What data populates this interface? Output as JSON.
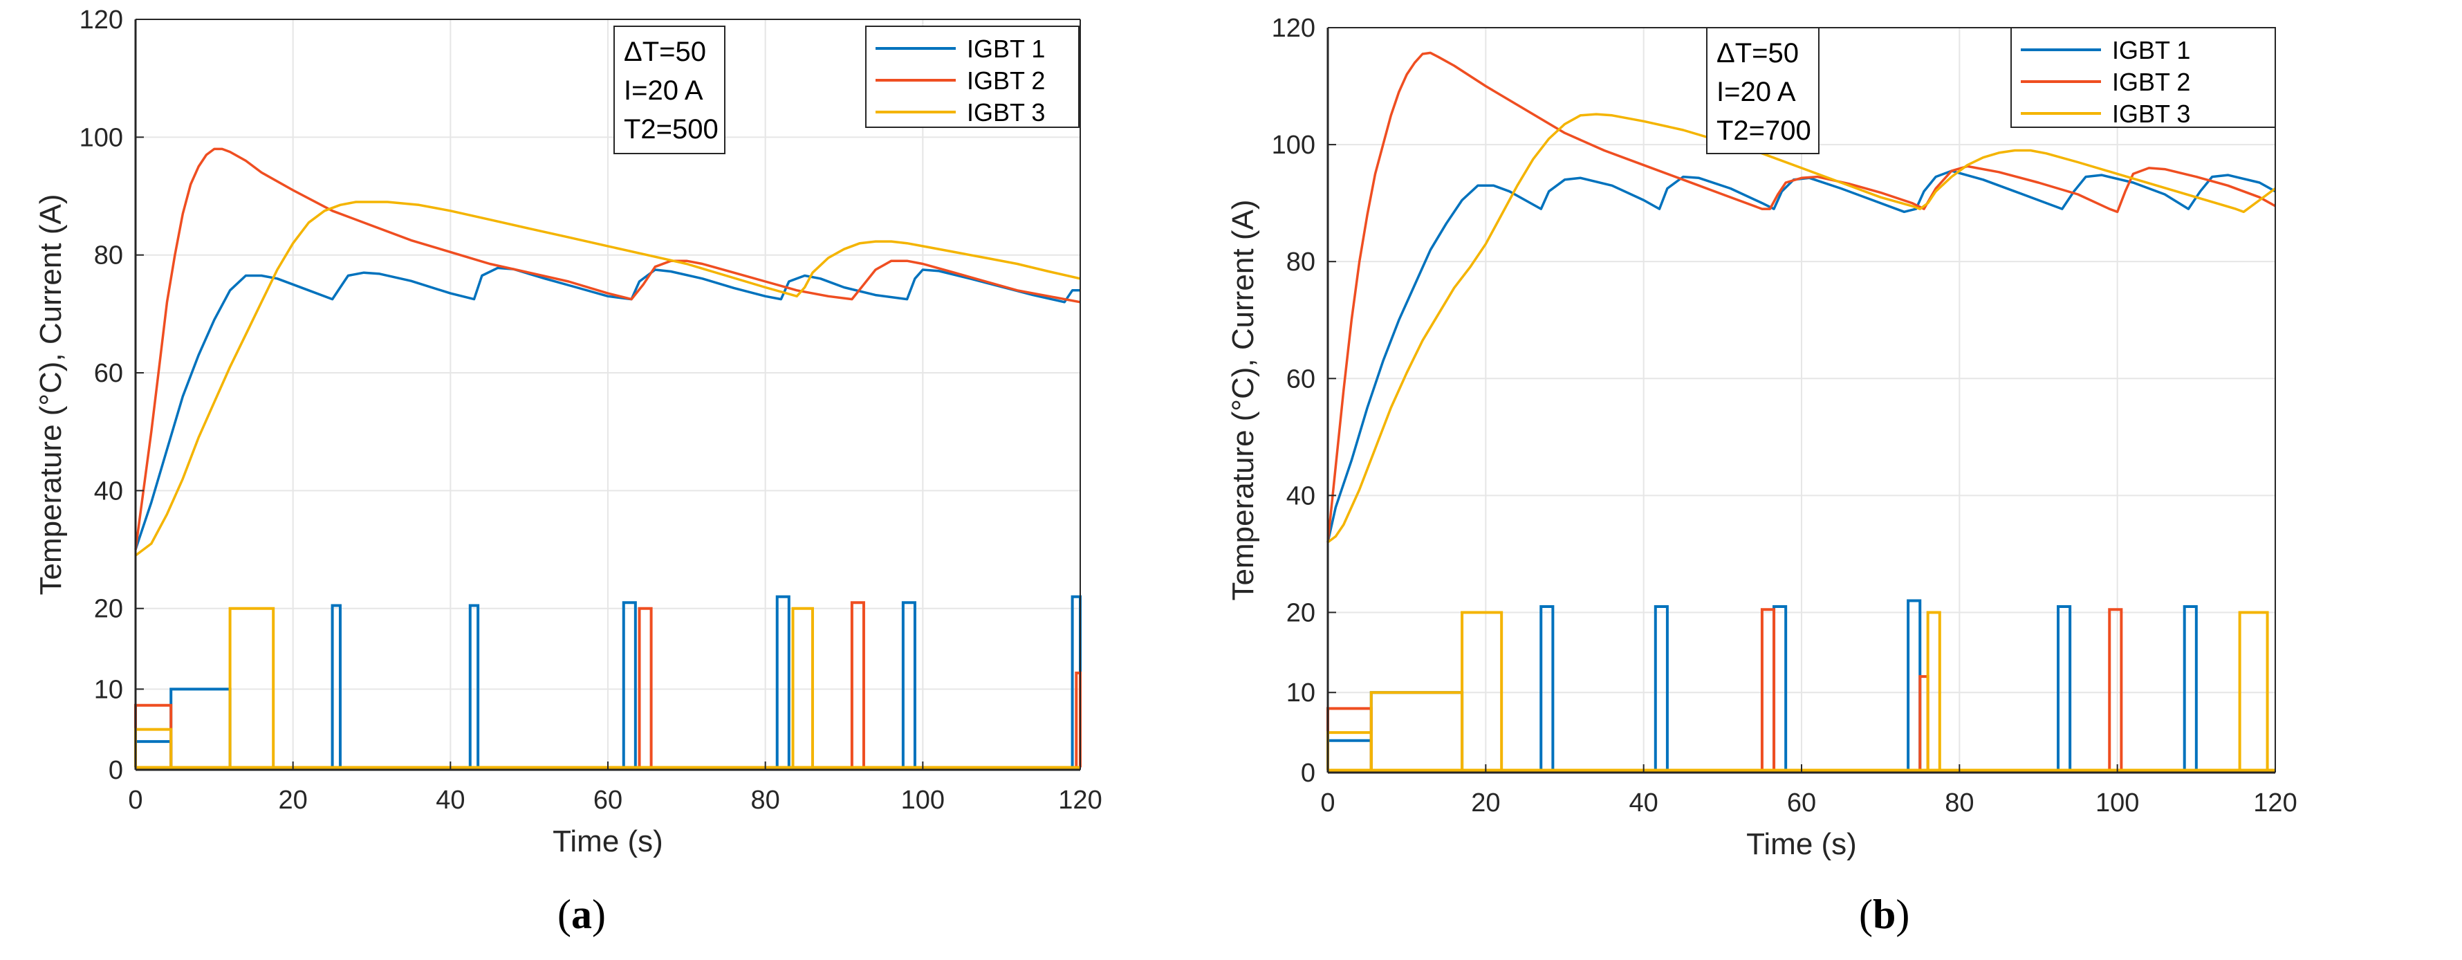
{
  "colors": {
    "igbt1": "#0072BD",
    "igbt2": "#EF4E21",
    "igbt3": "#F4B400",
    "axis": "#262626",
    "grid": "#E6E6E6"
  },
  "chart_data": [
    {
      "id": "a",
      "type": "line",
      "panel": {
        "open": "(",
        "letter": "a",
        "close": ")"
      },
      "xlabel": "Time (s)",
      "ylabel": "Temperature (°C), Current (A)",
      "xlim": [
        0,
        120
      ],
      "ylim": [
        0,
        120
      ],
      "xticks": [
        0,
        20,
        40,
        60,
        80,
        100,
        120
      ],
      "yticks": [
        0,
        10,
        20,
        40,
        60,
        80,
        100,
        120
      ],
      "grid": true,
      "annotation": [
        "ΔT=50",
        "I=20 A",
        "T2=500"
      ],
      "legend": {
        "position": "top-right",
        "entries": [
          "IGBT 1",
          "IGBT 2",
          "IGBT 3"
        ]
      },
      "series": [
        {
          "name": "IGBT 1",
          "color_key": "igbt1",
          "x": [
            0,
            0.5,
            2,
            4,
            6,
            8,
            10,
            12,
            14,
            16,
            18,
            20,
            22,
            25,
            26,
            27,
            29,
            31,
            35,
            40,
            43,
            44,
            46,
            48,
            52,
            56,
            60,
            63,
            64,
            66,
            68,
            72,
            76,
            80,
            82,
            83,
            85,
            87,
            90,
            94,
            98,
            99,
            100,
            102,
            106,
            110,
            114,
            118,
            119,
            120
          ],
          "y": [
            30,
            32,
            38,
            47,
            56,
            63,
            69,
            74,
            76.5,
            76.5,
            76,
            75,
            74,
            72.5,
            74.5,
            76.5,
            77,
            76.8,
            75.6,
            73.5,
            72.5,
            76.5,
            77.8,
            77.6,
            76,
            74.5,
            73,
            72.5,
            75.5,
            77.5,
            77.2,
            76,
            74.4,
            73,
            72.5,
            75.5,
            76.5,
            76,
            74.5,
            73.2,
            72.5,
            76,
            77.5,
            77.3,
            76,
            74.6,
            73.2,
            72,
            74,
            74
          ]
        },
        {
          "name": "IGBT 2",
          "color_key": "igbt2",
          "x": [
            0,
            1,
            2,
            3,
            4,
            5,
            6,
            7,
            8,
            9,
            10,
            11,
            12,
            14,
            16,
            20,
            25,
            30,
            35,
            40,
            45,
            50,
            55,
            60,
            63,
            64.5,
            66,
            68,
            70,
            72,
            76,
            80,
            84,
            88,
            91,
            92.5,
            94,
            96,
            98,
            100,
            104,
            108,
            112,
            116,
            120
          ],
          "y": [
            30,
            40,
            50,
            61,
            72,
            80,
            87,
            92,
            95,
            97,
            98,
            98,
            97.5,
            96,
            94,
            91,
            87.5,
            85,
            82.5,
            80.5,
            78.5,
            77,
            75.5,
            73.5,
            72.5,
            75,
            78,
            79,
            79,
            78.5,
            77,
            75.5,
            74,
            73,
            72.5,
            75,
            77.5,
            79,
            79,
            78.5,
            77,
            75.5,
            74,
            73,
            72
          ]
        },
        {
          "name": "IGBT 3",
          "color_key": "igbt3",
          "x": [
            0,
            2,
            4,
            6,
            8,
            10,
            12,
            14,
            16,
            18,
            20,
            22,
            24,
            26,
            28,
            30,
            32,
            36,
            40,
            45,
            50,
            55,
            60,
            65,
            70,
            75,
            80,
            84,
            85,
            86,
            88,
            90,
            92,
            94,
            96,
            98,
            100,
            104,
            108,
            112,
            116,
            120
          ],
          "y": [
            29,
            31,
            36,
            42,
            49,
            55,
            61,
            66.5,
            72,
            77.5,
            82,
            85.5,
            87.5,
            88.5,
            89,
            89,
            89,
            88.5,
            87.5,
            86,
            84.5,
            83,
            81.5,
            80,
            78.5,
            76.5,
            74.5,
            73,
            74.5,
            77,
            79.5,
            81,
            82,
            82.3,
            82.3,
            82,
            81.5,
            80.5,
            79.5,
            78.5,
            77.2,
            76
          ]
        }
      ],
      "current_pulses": [
        {
          "series": "IGBT 1",
          "color_key": "igbt1",
          "base": 0.3,
          "segments": [
            [
              0,
              3.5,
              4.5
            ],
            [
              4.5,
              10,
              12
            ],
            [
              25,
              20.5,
              26
            ],
            [
              42.5,
              20.5,
              43.5
            ],
            [
              62,
              21,
              63.5
            ],
            [
              81.5,
              22,
              83
            ],
            [
              97.5,
              21,
              99
            ],
            [
              119,
              22,
              120
            ]
          ]
        },
        {
          "series": "IGBT 2",
          "color_key": "igbt2",
          "base": 0.3,
          "segments": [
            [
              0,
              8,
              4.5
            ],
            [
              64,
              20,
              65.5
            ],
            [
              91,
              21,
              92.5
            ],
            [
              119.5,
              12,
              120
            ]
          ]
        },
        {
          "series": "IGBT 3",
          "color_key": "igbt3",
          "base": 0.3,
          "segments": [
            [
              0,
              5,
              4.5
            ],
            [
              12,
              20,
              17.5
            ],
            [
              83.5,
              20,
              86
            ]
          ]
        }
      ]
    },
    {
      "id": "b",
      "type": "line",
      "panel": {
        "open": "(",
        "letter": "b",
        "close": ")"
      },
      "xlabel": "Time (s)",
      "ylabel": "Temperature (°C), Current (A)",
      "xlim": [
        0,
        120
      ],
      "ylim": [
        0,
        120
      ],
      "xticks": [
        0,
        20,
        40,
        60,
        80,
        100,
        120
      ],
      "yticks": [
        0,
        10,
        20,
        40,
        60,
        80,
        100,
        120
      ],
      "grid": true,
      "annotation": [
        "ΔT=50",
        "I=20 A",
        "T2=700"
      ],
      "legend": {
        "position": "top-right",
        "entries": [
          "IGBT 1",
          "IGBT 2",
          "IGBT 3"
        ]
      },
      "series": [
        {
          "name": "IGBT 1",
          "color_key": "igbt1",
          "x": [
            0,
            1,
            3,
            5,
            7,
            9,
            11,
            13,
            15,
            17,
            19,
            21,
            23,
            25,
            27,
            28,
            30,
            32,
            36,
            40,
            42,
            43,
            45,
            47,
            51,
            55,
            56.5,
            57.5,
            59,
            61,
            65,
            69,
            73,
            74.5,
            75.5,
            77,
            79,
            83,
            87,
            91,
            93,
            94.5,
            96,
            98,
            102,
            106,
            109,
            110.5,
            112,
            114,
            118,
            120
          ],
          "y": [
            32,
            38,
            46,
            55,
            63,
            70,
            76,
            82,
            86.5,
            90.5,
            93,
            93,
            92,
            90.5,
            89,
            92,
            94,
            94.3,
            93,
            90.5,
            89,
            92.5,
            94.5,
            94.3,
            92.5,
            90,
            89,
            92,
            94,
            94.3,
            92.5,
            90.5,
            88.5,
            89,
            92,
            94.5,
            95.5,
            94,
            92,
            90,
            89,
            92,
            94.5,
            94.8,
            93.5,
            91.5,
            89,
            92,
            94.5,
            94.8,
            93.5,
            92
          ]
        },
        {
          "name": "IGBT 2",
          "color_key": "igbt2",
          "x": [
            0,
            1,
            2,
            3,
            4,
            5,
            6,
            7,
            8,
            9,
            10,
            11,
            12,
            13,
            14,
            16,
            20,
            25,
            30,
            35,
            40,
            45,
            50,
            55,
            56,
            57,
            58,
            60,
            62,
            66,
            70,
            74,
            75.5,
            77,
            79,
            81,
            85,
            90,
            95,
            99,
            100,
            101,
            102,
            104,
            106,
            110,
            114,
            118,
            120
          ],
          "y": [
            32,
            45,
            58,
            70,
            80,
            88,
            95,
            100,
            105,
            109,
            112,
            114,
            115.5,
            115.7,
            115,
            113.5,
            110,
            106,
            102,
            99,
            96.5,
            94,
            91.5,
            89,
            89,
            91.5,
            93.5,
            94.3,
            94.5,
            93.3,
            91.8,
            90,
            89,
            92.5,
            95.5,
            96.3,
            95.3,
            93.5,
            91.5,
            89,
            88.5,
            92,
            95,
            96,
            95.8,
            94.5,
            93,
            91,
            89.5
          ]
        },
        {
          "name": "IGBT 3",
          "color_key": "igbt3",
          "x": [
            0,
            1,
            2,
            4,
            6,
            8,
            10,
            12,
            14,
            16,
            18,
            20,
            22,
            24,
            26,
            28,
            30,
            32,
            34,
            36,
            40,
            45,
            50,
            55,
            60,
            65,
            70,
            74,
            75,
            76,
            77,
            79,
            81,
            83,
            85,
            87,
            89,
            91,
            95,
            100,
            105,
            110,
            115,
            116,
            118,
            120
          ],
          "y": [
            32,
            33,
            35,
            41,
            48,
            55,
            61,
            66.5,
            71,
            75.5,
            79,
            83,
            88,
            93,
            97.5,
            101,
            103.5,
            105,
            105.2,
            105,
            104,
            102.5,
            100.5,
            98.5,
            96,
            93.5,
            91,
            89.5,
            89,
            90,
            92,
            94.5,
            96.5,
            97.8,
            98.6,
            99,
            99,
            98.5,
            97,
            95,
            93,
            91,
            89,
            88.5,
            90.5,
            92.5
          ]
        }
      ],
      "current_pulses": [
        {
          "series": "IGBT 1",
          "color_key": "igbt1",
          "base": 0.3,
          "segments": [
            [
              0,
              4,
              5.5
            ],
            [
              5.5,
              10,
              17
            ],
            [
              27,
              21,
              28.5
            ],
            [
              41.5,
              21,
              43
            ],
            [
              56.5,
              21,
              58
            ],
            [
              73.5,
              22,
              75
            ],
            [
              92.5,
              21,
              94
            ],
            [
              108.5,
              21,
              110
            ]
          ]
        },
        {
          "series": "IGBT 2",
          "color_key": "igbt2",
          "base": 0.3,
          "segments": [
            [
              0,
              8,
              5.5
            ],
            [
              55,
              20.5,
              56.5
            ],
            [
              75,
              12,
              76
            ],
            [
              99,
              20.5,
              100.5
            ]
          ]
        },
        {
          "series": "IGBT 3",
          "color_key": "igbt3",
          "base": 0.3,
          "segments": [
            [
              0,
              5,
              5.5
            ],
            [
              5.5,
              10,
              17
            ],
            [
              17,
              20,
              22
            ],
            [
              76,
              20,
              77.5
            ],
            [
              115.5,
              20,
              119
            ]
          ]
        }
      ]
    }
  ]
}
